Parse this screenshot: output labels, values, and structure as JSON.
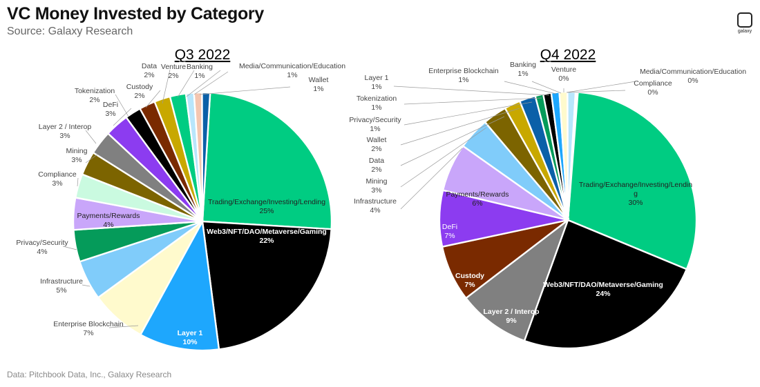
{
  "header": {
    "title": "VC Money Invested by Category",
    "subtitle": "Source: Galaxy Research",
    "footer": "Data: Pitchbook Data, Inc., Galaxy Research",
    "logo_text": "galaxy"
  },
  "chart_data": [
    {
      "type": "pie",
      "title": "Q3 2022",
      "slices": [
        {
          "label": "Trading/Exchange/Investing/Lending",
          "value": 25,
          "pct": "25%",
          "color": "#00cc82"
        },
        {
          "label": "Web3/NFT/DAO/Metaverse/Gaming",
          "value": 22,
          "pct": "22%",
          "color": "#000000"
        },
        {
          "label": "Layer 1",
          "value": 10,
          "pct": "10%",
          "color": "#1ea7fd"
        },
        {
          "label": "Enterprise Blockchain",
          "value": 7,
          "pct": "7%",
          "color": "#fffacd"
        },
        {
          "label": "Infrastructure",
          "value": 5,
          "pct": "5%",
          "color": "#80ccfa"
        },
        {
          "label": "Privacy/Security",
          "value": 4,
          "pct": "4%",
          "color": "#059b5a"
        },
        {
          "label": "Payments/Rewards",
          "value": 4,
          "pct": "4%",
          "color": "#c9a6fa"
        },
        {
          "label": "Compliance",
          "value": 3,
          "pct": "3%",
          "color": "#cafae0"
        },
        {
          "label": "Mining",
          "value": 3,
          "pct": "3%",
          "color": "#7c6400"
        },
        {
          "label": "Layer 2 / Interop",
          "value": 3,
          "pct": "3%",
          "color": "#808080"
        },
        {
          "label": "DeFi",
          "value": 3,
          "pct": "3%",
          "color": "#8c3cf0"
        },
        {
          "label": "Tokenization",
          "value": 2,
          "pct": "2%",
          "color": "#000000"
        },
        {
          "label": "Custody",
          "value": 2,
          "pct": "2%",
          "color": "#7a2a00"
        },
        {
          "label": "Data",
          "value": 2,
          "pct": "2%",
          "color": "#c8a800"
        },
        {
          "label": "Venture",
          "value": 2,
          "pct": "2%",
          "color": "#00cc82"
        },
        {
          "label": "Banking",
          "value": 1,
          "pct": "1%",
          "color": "#b8e6fc"
        },
        {
          "label": "Media/Communication/Education",
          "value": 1,
          "pct": "1%",
          "color": "#f4c6b0"
        },
        {
          "label": "Wallet",
          "value": 1,
          "pct": "1%",
          "color": "#0b60a8"
        }
      ]
    },
    {
      "type": "pie",
      "title": "Q4 2022",
      "slices": [
        {
          "label": "Trading/Exchange/Investing/Lending",
          "value": 30,
          "pct": "30%",
          "color": "#00cc82"
        },
        {
          "label": "Web3/NFT/DAO/Metaverse/Gaming",
          "value": 24,
          "pct": "24%",
          "color": "#000000"
        },
        {
          "label": "Layer 2 / Interop",
          "value": 9,
          "pct": "9%",
          "color": "#808080"
        },
        {
          "label": "Custody",
          "value": 7,
          "pct": "7%",
          "color": "#7a2a00"
        },
        {
          "label": "DeFi",
          "value": 7,
          "pct": "7%",
          "color": "#8c3cf0"
        },
        {
          "label": "Payments/Rewards",
          "value": 6,
          "pct": "6%",
          "color": "#c9a6fa"
        },
        {
          "label": "Infrastructure",
          "value": 4,
          "pct": "4%",
          "color": "#80ccfa"
        },
        {
          "label": "Mining",
          "value": 3,
          "pct": "3%",
          "color": "#7c6400"
        },
        {
          "label": "Data",
          "value": 2,
          "pct": "2%",
          "color": "#c8a800"
        },
        {
          "label": "Wallet",
          "value": 2,
          "pct": "2%",
          "color": "#0b60a8"
        },
        {
          "label": "Privacy/Security",
          "value": 1,
          "pct": "1%",
          "color": "#059b5a"
        },
        {
          "label": "Tokenization",
          "value": 1,
          "pct": "1%",
          "color": "#000000"
        },
        {
          "label": "Layer 1",
          "value": 1,
          "pct": "1%",
          "color": "#1ea7fd"
        },
        {
          "label": "Enterprise Blockchain",
          "value": 1,
          "pct": "1%",
          "color": "#fffacd"
        },
        {
          "label": "Banking",
          "value": 1,
          "pct": "1%",
          "color": "#b8e6fc"
        },
        {
          "label": "Venture",
          "value": 0,
          "pct": "0%",
          "color": "#00cc82"
        },
        {
          "label": "Media/Communication/Education",
          "value": 0,
          "pct": "0%",
          "color": "#f4c6b0"
        },
        {
          "label": "Compliance",
          "value": 0,
          "pct": "0%",
          "color": "#cafae0"
        }
      ]
    }
  ]
}
